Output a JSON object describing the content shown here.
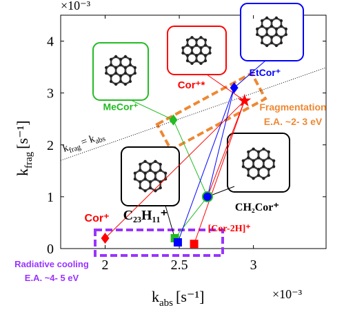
{
  "chart_data": {
    "type": "scatter",
    "x_label": {
      "main": "k",
      "sub": "abs",
      "unit": "[s⁻¹]"
    },
    "y_label": {
      "main": "k",
      "sub": "frag",
      "unit": "[s⁻¹]"
    },
    "x_exponent": "×10⁻³",
    "y_exponent": "×10⁻³",
    "xlim": [
      1.7,
      3.49
    ],
    "ylim": [
      0,
      4.5
    ],
    "xticks": [
      2,
      2.5,
      3
    ],
    "yticks": [
      0,
      1,
      2,
      3,
      4
    ],
    "reference_line": {
      "label": [
        "k",
        "frag",
        "= k",
        "abs"
      ]
    },
    "series": [
      {
        "name": "Cor⁺",
        "color": "#ff0000",
        "marker": "diamond",
        "x": [
          2.0
        ],
        "values": [
          0.2
        ]
      },
      {
        "name": "C₂₃H₁₁⁺",
        "color": "#22bb22",
        "marker": "square",
        "x": [
          2.47
        ],
        "values": [
          0.2
        ]
      },
      {
        "color": "#0000ff",
        "marker": "square",
        "x": [
          2.49
        ],
        "values": [
          0.12
        ]
      },
      {
        "name": "[Cor-2H]⁺",
        "color": "#ff0000",
        "marker": "square",
        "x": [
          2.6
        ],
        "values": [
          0.09
        ]
      },
      {
        "name": "CH₂Cor⁺",
        "color": "#0000ff",
        "marker": "circle",
        "x": [
          2.69
        ],
        "values": [
          1.0
        ]
      },
      {
        "name": "MeCor⁺",
        "color": "#22bb22",
        "marker": "diamond",
        "x": [
          2.46
        ],
        "values": [
          2.48
        ]
      },
      {
        "name": "EtCor⁺",
        "color": "#0000ff",
        "marker": "diamond",
        "x": [
          2.87
        ],
        "values": [
          3.1
        ]
      },
      {
        "name": "Cor⁺*",
        "color": "#ff0000",
        "marker": "star",
        "x": [
          2.94
        ],
        "values": [
          2.85
        ]
      }
    ],
    "annotations": {
      "fragmentation": [
        "Fragmentation",
        "E.A. ~2- 3 eV"
      ],
      "radiative": [
        "Radiative cooling",
        "E.A. ~4- 5 eV"
      ]
    }
  }
}
